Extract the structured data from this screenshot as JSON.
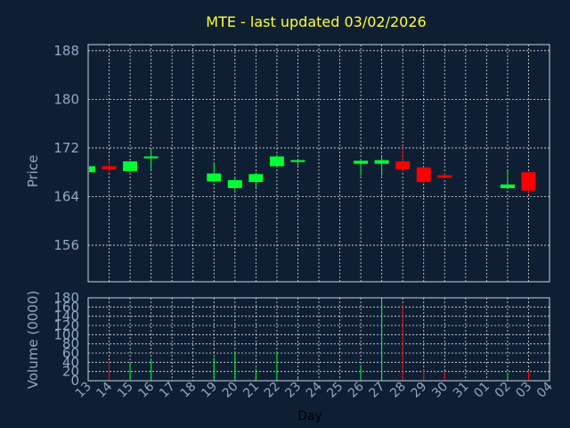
{
  "chart_data": [
    {
      "type": "candlestick",
      "title": "MTE - last updated 03/02/2026",
      "ylabel": "Price",
      "ylim": [
        150,
        189
      ],
      "yticks": [
        156,
        164,
        172,
        180,
        188
      ],
      "grid": true,
      "categories": [
        "13",
        "14",
        "15",
        "16",
        "17",
        "18",
        "19",
        "20",
        "21",
        "22",
        "23",
        "24",
        "25",
        "26",
        "27",
        "28",
        "29",
        "30",
        "31",
        "01",
        "02",
        "03",
        "04"
      ],
      "candles": [
        {
          "day": "13",
          "open": 168.0,
          "close": 169.0,
          "high": 169.0,
          "low": 167.8,
          "color": "#00ff33"
        },
        {
          "day": "14",
          "open": 169.0,
          "close": 168.5,
          "high": 170.0,
          "low": 167.8,
          "color": "#ff0000"
        },
        {
          "day": "15",
          "open": 168.2,
          "close": 169.8,
          "high": 169.8,
          "low": 168.0,
          "color": "#00ff33"
        },
        {
          "day": "16",
          "open": 170.3,
          "close": 170.6,
          "high": 171.8,
          "low": 168.4,
          "color": "#00ff33"
        },
        {
          "day": "19",
          "open": 166.5,
          "close": 167.8,
          "high": 169.6,
          "low": 166.3,
          "color": "#00ff33"
        },
        {
          "day": "20",
          "open": 165.4,
          "close": 166.7,
          "high": 167.2,
          "low": 165.0,
          "color": "#00ff33"
        },
        {
          "day": "21",
          "open": 166.4,
          "close": 167.7,
          "high": 168.0,
          "low": 165.4,
          "color": "#00ff33"
        },
        {
          "day": "22",
          "open": 169.0,
          "close": 170.6,
          "high": 170.9,
          "low": 169.0,
          "color": "#00ff33"
        },
        {
          "day": "23",
          "open": 169.7,
          "close": 170.0,
          "high": 170.1,
          "low": 169.1,
          "color": "#00ff33"
        },
        {
          "day": "26",
          "open": 169.4,
          "close": 169.9,
          "high": 170.1,
          "low": 167.4,
          "color": "#00ff33"
        },
        {
          "day": "27",
          "open": 169.4,
          "close": 170.0,
          "high": 170.6,
          "low": 167.4,
          "color": "#00ff33"
        },
        {
          "day": "28",
          "open": 169.8,
          "close": 168.5,
          "high": 172.0,
          "low": 168.0,
          "color": "#ff0000"
        },
        {
          "day": "29",
          "open": 168.8,
          "close": 166.4,
          "high": 168.8,
          "low": 166.2,
          "color": "#ff0000"
        },
        {
          "day": "30",
          "open": 167.5,
          "close": 167.1,
          "high": 167.9,
          "low": 167.0,
          "color": "#ff0000"
        },
        {
          "day": "02",
          "open": 165.4,
          "close": 166.0,
          "high": 168.3,
          "low": 165.3,
          "color": "#00ff33"
        },
        {
          "day": "03",
          "open": 168.0,
          "close": 165.0,
          "high": 168.0,
          "low": 164.4,
          "color": "#ff0000"
        }
      ]
    },
    {
      "type": "bar",
      "ylabel": "Volume (0000)",
      "xlabel": "Day",
      "ylim": [
        0,
        180
      ],
      "yticks": [
        0,
        20,
        40,
        60,
        80,
        100,
        120,
        140,
        160,
        180
      ],
      "grid": true,
      "categories": [
        "13",
        "14",
        "15",
        "16",
        "17",
        "18",
        "19",
        "20",
        "21",
        "22",
        "23",
        "24",
        "25",
        "26",
        "27",
        "28",
        "29",
        "30",
        "31",
        "01",
        "02",
        "03",
        "04"
      ],
      "bars": [
        {
          "day": "13",
          "value": 0,
          "color": "#00ff33"
        },
        {
          "day": "14",
          "value": 42,
          "color": "#ff0000"
        },
        {
          "day": "15",
          "value": 38,
          "color": "#00ff33"
        },
        {
          "day": "16",
          "value": 48,
          "color": "#00ff33"
        },
        {
          "day": "19",
          "value": 50,
          "color": "#00ff33"
        },
        {
          "day": "20",
          "value": 62,
          "color": "#00ff33"
        },
        {
          "day": "21",
          "value": 26,
          "color": "#00ff33"
        },
        {
          "day": "22",
          "value": 62,
          "color": "#00ff33"
        },
        {
          "day": "23",
          "value": 8,
          "color": "#00ff33"
        },
        {
          "day": "26",
          "value": 34,
          "color": "#00ff33"
        },
        {
          "day": "27",
          "value": 176,
          "color": "#00ff33"
        },
        {
          "day": "28",
          "value": 165,
          "color": "#ff0000"
        },
        {
          "day": "29",
          "value": 24,
          "color": "#ff0000"
        },
        {
          "day": "30",
          "value": 18,
          "color": "#ff0000"
        },
        {
          "day": "02",
          "value": 16,
          "color": "#00ff33"
        },
        {
          "day": "03",
          "value": 22,
          "color": "#ff0000"
        }
      ]
    }
  ]
}
